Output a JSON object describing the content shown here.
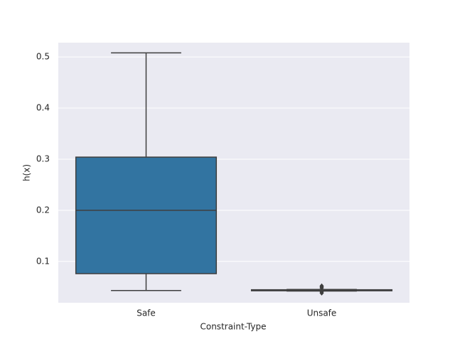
{
  "chart_data": {
    "type": "box",
    "x_label": "Constraint-Type",
    "y_label": "h(x)",
    "categories": [
      "Safe",
      "Unsafe"
    ],
    "boxes": [
      {
        "min": 0.043,
        "q1": 0.076,
        "median": 0.2,
        "q3": 0.304,
        "max": 0.508,
        "color": "#3274a1"
      },
      {
        "min": 0.042,
        "q1": 0.0425,
        "median": 0.043,
        "q3": 0.0445,
        "max": 0.045,
        "color": "#e1812c",
        "outliers": [
          0.038,
          0.04,
          0.048,
          0.05,
          0.052
        ]
      }
    ],
    "ylim": [
      0.019,
      0.528
    ],
    "yticks": [
      0.1,
      0.2,
      0.3,
      0.4,
      0.5
    ],
    "grid": true,
    "background": "#eaeaf2",
    "grid_color": "#ffffff",
    "line_color": "#3f3f3f"
  }
}
